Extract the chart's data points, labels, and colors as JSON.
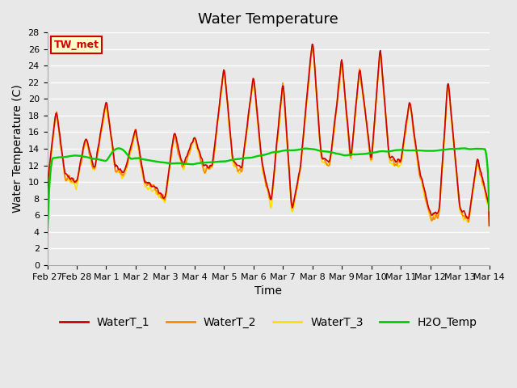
{
  "title": "Water Temperature",
  "ylabel": "Water Temperature (C)",
  "xlabel": "Time",
  "ylim": [
    0,
    28
  ],
  "yticks": [
    0,
    2,
    4,
    6,
    8,
    10,
    12,
    14,
    16,
    18,
    20,
    22,
    24,
    26,
    28
  ],
  "background_color": "#e8e8e8",
  "plot_bg_color": "#e8e8e8",
  "grid_color": "#ffffff",
  "annotation_text": "TW_met",
  "annotation_bg": "#ffffcc",
  "annotation_border": "#cc0000",
  "line_colors": {
    "WaterT_1": "#cc0000",
    "WaterT_2": "#ff8800",
    "WaterT_3": "#ffdd00",
    "H2O_Temp": "#00cc00"
  },
  "x_tick_labels": [
    "Feb 27",
    "Feb 28",
    "Mar 1",
    "Mar 2",
    "Mar 3",
    "Mar 4",
    "Mar 5",
    "Mar 6",
    "Mar 7",
    "Mar 8",
    "Mar 9",
    "Mar 10",
    "Mar 11",
    "Mar 12",
    "Mar 13",
    "Mar 14"
  ],
  "num_days": 15,
  "title_fontsize": 13,
  "axis_fontsize": 10,
  "tick_fontsize": 8
}
